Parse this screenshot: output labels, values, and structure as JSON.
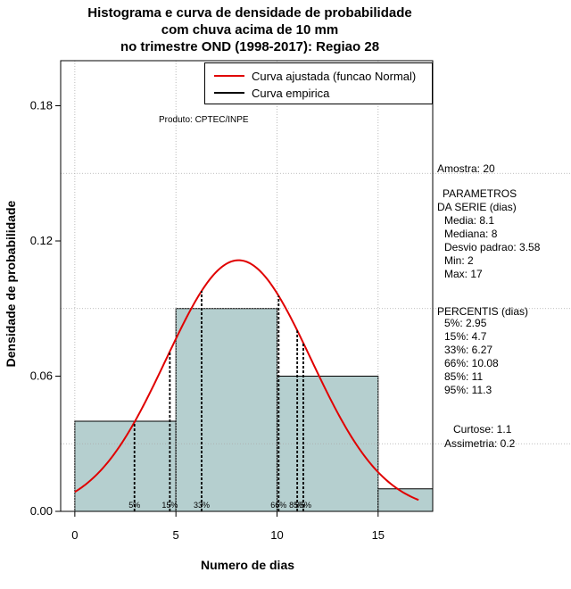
{
  "title_lines": [
    "Histograma e curva de densidade de probabilidade",
    "com chuva acima de 10 mm",
    "no trimestre OND (1998-2017): Regiao 28"
  ],
  "produto": "Produto: CPTEC/INPE",
  "legend": {
    "fitted_label": "Curva ajustada (funcao Normal)",
    "empirical_label": "Curva empirica",
    "fitted_color": "#e00000",
    "empirical_color": "#000000"
  },
  "side_panel": {
    "amostra": "Amostra: 20",
    "params_title_1": "PARAMETROS",
    "params_title_2": "DA SERIE (dias)",
    "media": "Media: 8.1",
    "mediana": "Mediana: 8",
    "desvio": "Desvio padrao: 3.58",
    "min": "Min: 2",
    "max": "Max: 17",
    "perc_title": "PERCENTIS (dias)",
    "p5": "5%: 2.95",
    "p15": "15%: 4.7",
    "p33": "33%: 6.27",
    "p66": "66%: 10.08",
    "p85": "85%: 11",
    "p95": "95%: 11.3",
    "curtose": "Curtose: 1.1",
    "assimetria": "Assimetria: 0.2"
  },
  "chart_data": {
    "type": "bar",
    "title": "Histograma e curva de densidade de probabilidade com chuva acima de 10 mm no trimestre OND (1998-2017): Regiao 28",
    "xlabel": "Numero de dias",
    "ylabel": "Densidade de probabilidade",
    "xlim": [
      -0.7,
      17.7
    ],
    "ylim": [
      0,
      0.2
    ],
    "x_ticks": [
      0,
      5,
      10,
      15
    ],
    "x_tick_labels": [
      "0",
      "5",
      "10",
      "15"
    ],
    "y_ticks": [
      0.0,
      0.06,
      0.12,
      0.18
    ],
    "y_tick_labels": [
      "0.00",
      "0.06",
      "0.12",
      "0.18"
    ],
    "grid": true,
    "bar_color": "#b5cfcf",
    "bins": [
      {
        "start": 0,
        "end": 5,
        "density": 0.04
      },
      {
        "start": 5,
        "end": 10,
        "density": 0.09
      },
      {
        "start": 10,
        "end": 15,
        "density": 0.06
      },
      {
        "start": 15,
        "end": 20,
        "density": 0.01
      }
    ],
    "normal_fit": {
      "mean": 8.1,
      "sd": 3.58,
      "x_from": 0,
      "x_to": 17
    },
    "percentiles": [
      {
        "label": "5%",
        "value": 2.95
      },
      {
        "label": "15%",
        "value": 4.7
      },
      {
        "label": "33%",
        "value": 6.27
      },
      {
        "label": "66%",
        "value": 10.08
      },
      {
        "label": "85%",
        "value": 11
      },
      {
        "label": "95%",
        "value": 11.3
      }
    ],
    "legend_position": "top-right"
  }
}
